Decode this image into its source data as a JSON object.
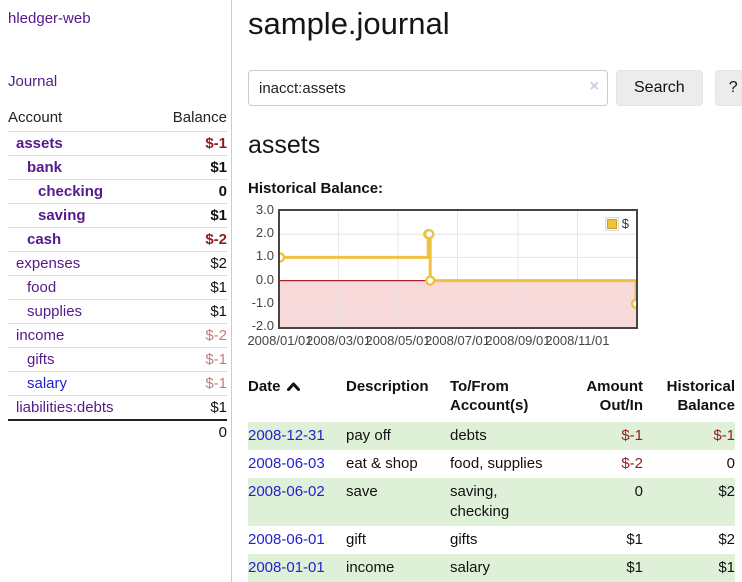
{
  "colors": {
    "link_purple": "#551a8b",
    "link_blue": "#2222cc",
    "negative_strong": "#8f1f1f",
    "negative_muted": "#c17f7f",
    "row_stripe_green": "#dff0d8",
    "chart_line": "#edc240"
  },
  "sidebar": {
    "app_title": "hledger-web",
    "journal_link": "Journal",
    "accounts_table": {
      "headers": {
        "account": "Account",
        "balance": "Balance"
      },
      "rows": [
        {
          "name": "assets",
          "balance": "$-1",
          "depth": 1,
          "bold": true,
          "neg": "strong"
        },
        {
          "name": "bank",
          "balance": "$1",
          "depth": 2,
          "bold": true,
          "neg": ""
        },
        {
          "name": "checking",
          "balance": "0",
          "depth": 3,
          "bold": true,
          "neg": ""
        },
        {
          "name": "saving",
          "balance": "$1",
          "depth": 3,
          "bold": true,
          "neg": ""
        },
        {
          "name": "cash",
          "balance": "$-2",
          "depth": 2,
          "bold": true,
          "neg": "strong"
        },
        {
          "name": "expenses",
          "balance": "$2",
          "depth": 1,
          "bold": false,
          "neg": ""
        },
        {
          "name": "food",
          "balance": "$1",
          "depth": 2,
          "bold": false,
          "neg": ""
        },
        {
          "name": "supplies",
          "balance": "$1",
          "depth": 2,
          "bold": false,
          "neg": ""
        },
        {
          "name": "income",
          "balance": "$-2",
          "depth": 1,
          "bold": false,
          "neg": "muted"
        },
        {
          "name": "gifts",
          "balance": "$-1",
          "depth": 2,
          "bold": false,
          "neg": "muted"
        },
        {
          "name": "salary",
          "balance": "$-1",
          "depth": 2,
          "bold": false,
          "neg": "muted",
          "link": "blue"
        },
        {
          "name": "liabilities:debts",
          "balance": "$1",
          "depth": 1,
          "bold": false,
          "neg": ""
        }
      ],
      "total": "0"
    }
  },
  "header": {
    "title": "sample.journal"
  },
  "search": {
    "value": "inacct:assets",
    "clear_icon": "×",
    "button_label": "Search",
    "help_label": "?"
  },
  "account_page": {
    "title": "assets",
    "chart_label": "Historical Balance:"
  },
  "chart_data": {
    "type": "line",
    "step": true,
    "title": "Historical Balance",
    "ylim": [
      -2,
      3
    ],
    "y_ticks": [
      {
        "label": "3.0",
        "value": 3
      },
      {
        "label": "2.0",
        "value": 2
      },
      {
        "label": "1.0",
        "value": 1
      },
      {
        "label": "0.0",
        "value": 0
      },
      {
        "label": "-1.0",
        "value": -1
      },
      {
        "label": "-2.0",
        "value": -2
      }
    ],
    "x_range_days": [
      0,
      365
    ],
    "x_ticks": [
      {
        "label": "2008/01/01",
        "day": 0
      },
      {
        "label": "2008/03/01",
        "day": 60
      },
      {
        "label": "2008/05/01",
        "day": 121
      },
      {
        "label": "2008/07/01",
        "day": 182
      },
      {
        "label": "2008/09/01",
        "day": 244
      },
      {
        "label": "2008/11/01",
        "day": 305
      }
    ],
    "series": [
      {
        "name": "$",
        "color": "#edc240",
        "points": [
          {
            "date": "2008/01/01",
            "day": 0,
            "value": 1
          },
          {
            "date": "2008/06/01",
            "day": 152,
            "value": 2
          },
          {
            "date": "2008/06/02",
            "day": 153,
            "value": 2
          },
          {
            "date": "2008/06/03",
            "day": 154,
            "value": 0
          },
          {
            "date": "2008/12/31",
            "day": 365,
            "value": -1
          }
        ]
      }
    ],
    "legend_position": "top-right",
    "grid": true,
    "zero_line_color": "#ab2222",
    "negative_region_color": "#f9dada"
  },
  "transactions": {
    "headers": [
      "Date",
      "Description",
      "To/From Account(s)",
      "Amount Out/In",
      "Historical Balance"
    ],
    "rows": [
      {
        "date": "2008-12-31",
        "description": "pay off",
        "accounts": "debts",
        "amount": "$-1",
        "amount_neg": true,
        "balance": "$-1",
        "balance_neg": true,
        "striped": true
      },
      {
        "date": "2008-06-03",
        "description": "eat & shop",
        "accounts": "food, supplies",
        "amount": "$-2",
        "amount_neg": true,
        "balance": "0",
        "balance_neg": false,
        "striped": false
      },
      {
        "date": "2008-06-02",
        "description": "save",
        "accounts": "saving, checking",
        "amount": "0",
        "amount_neg": false,
        "balance": "$2",
        "balance_neg": false,
        "striped": true
      },
      {
        "date": "2008-06-01",
        "description": "gift",
        "accounts": "gifts",
        "amount": "$1",
        "amount_neg": false,
        "balance": "$2",
        "balance_neg": false,
        "striped": false
      },
      {
        "date": "2008-01-01",
        "description": "income",
        "accounts": "salary",
        "amount": "$1",
        "amount_neg": false,
        "balance": "$1",
        "balance_neg": false,
        "striped": true
      }
    ]
  }
}
